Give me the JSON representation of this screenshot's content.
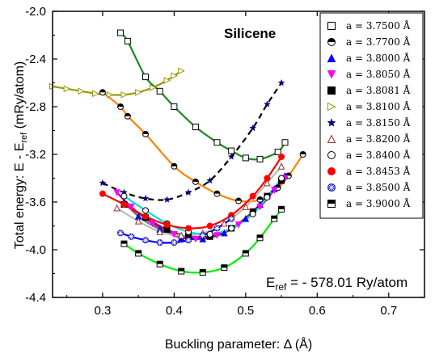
{
  "chart_data": {
    "type": "scatter",
    "title": "Silicene",
    "xlabel": "Buckling parameter: Δ (Å)",
    "ylabel": {
      "main": "Total energy: E - E",
      "sub": "ref",
      "tail": " (mRy/atom)"
    },
    "annotation": {
      "prefix": "E",
      "sub": "ref",
      "text": " = - 578.01 Ry/atom"
    },
    "xlim": [
      0.23,
      0.75
    ],
    "ylim": [
      -4.4,
      -2.0
    ],
    "x_ticks": [
      0.3,
      0.4,
      0.5,
      0.6,
      0.7
    ],
    "x_tick_labels": [
      "0.3",
      "0.4",
      "0.5",
      "0.6",
      "0.7"
    ],
    "y_ticks": [
      -4.4,
      -4.0,
      -3.6,
      -3.2,
      -2.8,
      -2.4,
      -2.0
    ],
    "y_tick_labels": [
      "-4.4",
      "-4.0",
      "-3.6",
      "-3.2",
      "-2.8",
      "-2.4",
      "-2.0"
    ],
    "grid": false,
    "legend_position": "top-right",
    "series": [
      {
        "name": "a = 3.7500 Å",
        "marker": "square-open",
        "marker_color": "#000000",
        "line_color": "#1a8a1a",
        "line_style": "solid",
        "x": [
          0.325,
          0.335,
          0.36,
          0.38,
          0.4,
          0.43,
          0.46,
          0.48,
          0.5,
          0.52,
          0.545,
          0.555
        ],
        "y": [
          -2.18,
          -2.25,
          -2.55,
          -2.67,
          -2.8,
          -2.97,
          -3.1,
          -3.17,
          -3.23,
          -3.24,
          -3.18,
          -3.1
        ]
      },
      {
        "name": "a = 3.7700 Å",
        "marker": "circle-halftop",
        "marker_color": "#000000",
        "line_color": "#ff8000",
        "line_style": "solid",
        "x": [
          0.3,
          0.325,
          0.335,
          0.36,
          0.4,
          0.43,
          0.46,
          0.49,
          0.52,
          0.545,
          0.56,
          0.58
        ],
        "y": [
          -2.68,
          -2.8,
          -2.88,
          -3.03,
          -3.3,
          -3.43,
          -3.53,
          -3.59,
          -3.58,
          -3.48,
          -3.38,
          -3.2
        ]
      },
      {
        "name": "a = 3.8000 Å",
        "marker": "triangle-up-filled",
        "marker_color": "#0000ff",
        "line_color": "#777777",
        "line_style": "solid",
        "x": [
          0.33,
          0.35,
          0.38,
          0.41,
          0.44,
          0.47,
          0.5,
          0.52,
          0.54,
          0.555
        ],
        "y": [
          -3.6,
          -3.72,
          -3.83,
          -3.9,
          -3.91,
          -3.86,
          -3.74,
          -3.62,
          -3.49,
          -3.38
        ]
      },
      {
        "name": "a = 3.8050 Å",
        "marker": "triangle-down-filled",
        "marker_color": "#ff00ff",
        "line_color": "#bb00bb",
        "line_style": "solid",
        "x": [
          0.32,
          0.34,
          0.37,
          0.4,
          0.43,
          0.46,
          0.49,
          0.52,
          0.54,
          0.555
        ],
        "y": [
          -3.52,
          -3.64,
          -3.78,
          -3.87,
          -3.91,
          -3.88,
          -3.79,
          -3.64,
          -3.5,
          -3.4
        ]
      },
      {
        "name": "a = 3.8081 Å",
        "marker": "square-filled",
        "marker_color": "#000000",
        "line_color": "#8b2a2a",
        "line_style": "solid",
        "x": [
          0.33,
          0.36,
          0.39,
          0.42,
          0.45,
          0.48,
          0.51,
          0.53,
          0.55
        ],
        "y": [
          -3.62,
          -3.73,
          -3.83,
          -3.89,
          -3.89,
          -3.82,
          -3.68,
          -3.55,
          -3.42
        ]
      },
      {
        "name": "a = 3.8100 Å",
        "marker": "triangle-right-open",
        "marker_color": "#999900",
        "line_color": "#999900",
        "line_style": "solid",
        "x": [
          0.23,
          0.25,
          0.27,
          0.29,
          0.31,
          0.33,
          0.35,
          0.37,
          0.39,
          0.4,
          0.41
        ],
        "y": [
          -2.63,
          -2.65,
          -2.67,
          -2.69,
          -2.7,
          -2.7,
          -2.68,
          -2.64,
          -2.58,
          -2.54,
          -2.5
        ]
      },
      {
        "name": "a = 3.8150 Å",
        "marker": "star-filled",
        "marker_color": "#000080",
        "line_color": "#000000",
        "line_style": "dashed",
        "x": [
          0.3,
          0.33,
          0.36,
          0.39,
          0.42,
          0.45,
          0.48,
          0.51,
          0.53,
          0.55
        ],
        "y": [
          -3.44,
          -3.52,
          -3.57,
          -3.58,
          -3.52,
          -3.42,
          -3.22,
          -2.98,
          -2.78,
          -2.6
        ]
      },
      {
        "name": "a = 3.8200 Å",
        "marker": "triangle-up-open",
        "marker_color": "#993333",
        "line_color": "#bbbbbb",
        "line_style": "solid",
        "x": [
          0.32,
          0.35,
          0.38,
          0.41,
          0.44,
          0.47,
          0.5,
          0.53,
          0.55
        ],
        "y": [
          -3.65,
          -3.76,
          -3.85,
          -3.88,
          -3.86,
          -3.78,
          -3.64,
          -3.44,
          -3.3
        ]
      },
      {
        "name": "a = 3.8400 Å",
        "marker": "circle-open",
        "marker_color": "#000000",
        "line_color": "#00dddd",
        "line_style": "solid",
        "x": [
          0.33,
          0.36,
          0.39,
          0.42,
          0.45,
          0.48,
          0.51,
          0.53,
          0.55
        ],
        "y": [
          -3.55,
          -3.67,
          -3.78,
          -3.85,
          -3.87,
          -3.82,
          -3.7,
          -3.56,
          -3.4
        ]
      },
      {
        "name": "a = 3.8453 Å",
        "marker": "circle-filled",
        "marker_color": "#ff0000",
        "line_color": "#ff0000",
        "line_style": "solid",
        "x": [
          0.3,
          0.33,
          0.36,
          0.39,
          0.42,
          0.45,
          0.48,
          0.51,
          0.53,
          0.55
        ],
        "y": [
          -3.53,
          -3.62,
          -3.72,
          -3.79,
          -3.82,
          -3.8,
          -3.71,
          -3.55,
          -3.4,
          -3.22
        ]
      },
      {
        "name": "a = 3.8500 Å",
        "marker": "circle-crossed",
        "marker_color": "#3333ff",
        "line_color": "#0000ff",
        "line_style": "solid",
        "x": [
          0.325,
          0.34,
          0.36,
          0.38,
          0.4,
          0.42,
          0.44,
          0.46,
          0.48
        ],
        "y": [
          -3.86,
          -3.89,
          -3.92,
          -3.94,
          -3.94,
          -3.92,
          -3.88,
          -3.82,
          -3.74
        ]
      },
      {
        "name": "a = 3.9000 Å",
        "marker": "square-halftop",
        "marker_color": "#000000",
        "line_color": "#00ee00",
        "line_style": "solid",
        "x": [
          0.33,
          0.35,
          0.38,
          0.41,
          0.44,
          0.47,
          0.5,
          0.52,
          0.54,
          0.55
        ],
        "y": [
          -3.95,
          -4.03,
          -4.12,
          -4.18,
          -4.19,
          -4.15,
          -4.03,
          -3.9,
          -3.74,
          -3.66
        ]
      }
    ]
  }
}
